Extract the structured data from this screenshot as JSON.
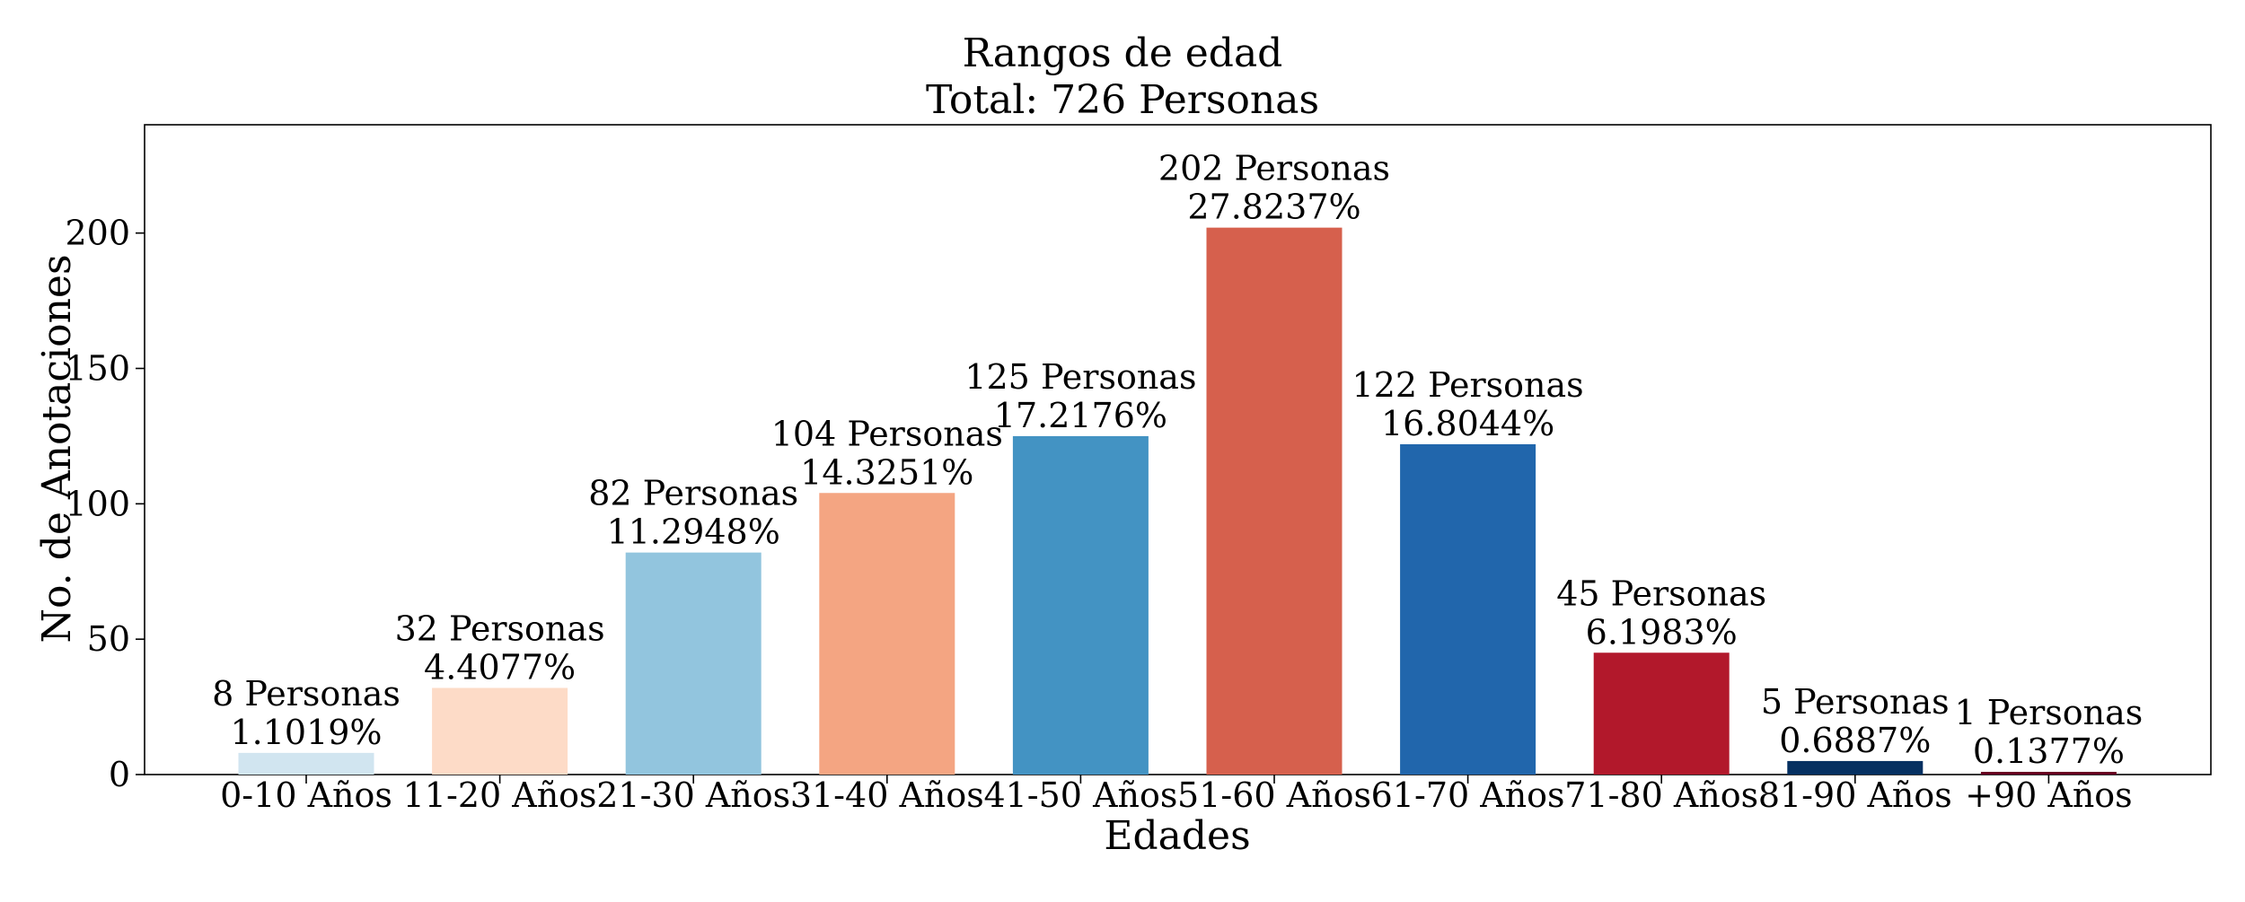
{
  "chart_data": {
    "type": "bar",
    "title": "Rangos de edad",
    "subtitle": "Total: 726 Personas",
    "xlabel": "Edades",
    "ylabel": "No. de Anotaciones",
    "ylim": [
      0,
      240
    ],
    "yticks": [
      0,
      50,
      100,
      150,
      200
    ],
    "grid": false,
    "categories": [
      "0-10 Años",
      "11-20 Años",
      "21-30 Años",
      "31-40 Años",
      "41-50 Años",
      "51-60 Años",
      "61-70 Años",
      "71-80 Años",
      "81-90 Años",
      "+90 Años"
    ],
    "values": [
      8,
      32,
      82,
      104,
      125,
      202,
      122,
      45,
      5,
      1
    ],
    "count_labels": [
      "8 Personas",
      "32 Personas",
      "82 Personas",
      "104 Personas",
      "125 Personas",
      "202 Personas",
      "122 Personas",
      "45 Personas",
      "5 Personas",
      "1 Personas"
    ],
    "percent_labels": [
      "1.1019%",
      "4.4077%",
      "11.2948%",
      "14.3251%",
      "17.2176%",
      "27.8237%",
      "16.8044%",
      "6.1983%",
      "0.6887%",
      "0.1377%"
    ],
    "colors": [
      "#d1e5f0",
      "#fddbc7",
      "#92c5de",
      "#f4a582",
      "#4393c3",
      "#d6604d",
      "#2166ac",
      "#b2182b",
      "#053061",
      "#67001f"
    ]
  }
}
